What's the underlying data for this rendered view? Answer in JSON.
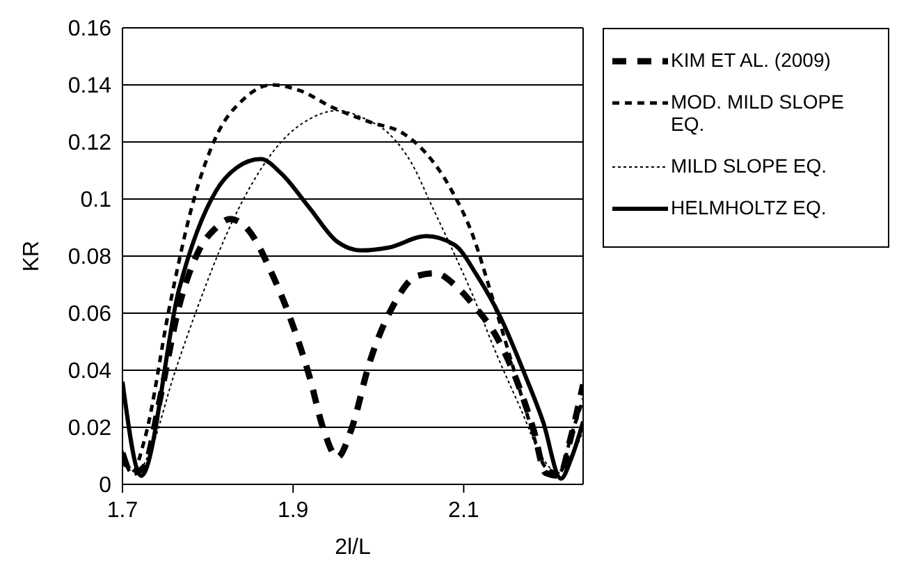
{
  "chart_data": {
    "type": "line",
    "xlabel": "2l/L",
    "ylabel": "KR",
    "xlim": [
      1.7,
      2.24
    ],
    "xticks": [
      1.7,
      1.9,
      2.1
    ],
    "ylim": [
      0,
      0.16
    ],
    "yticks": [
      0,
      0.02,
      0.04,
      0.06,
      0.08,
      0.1,
      0.12,
      0.14,
      0.16
    ],
    "grid": "y",
    "legend": "top right",
    "marker": "none",
    "series": [
      {
        "name": "KIM ET AL. (2009)",
        "color": "#000000",
        "line_style": "dashed",
        "x": [
          1.7,
          1.711,
          1.725,
          1.744,
          1.766,
          1.788,
          1.81,
          1.826,
          1.848,
          1.875,
          1.897,
          1.919,
          1.936,
          1.952,
          1.968,
          1.99,
          2.018,
          2.045,
          2.067,
          2.089,
          2.111,
          2.138,
          2.16,
          2.182,
          2.196,
          2.212,
          2.226,
          2.24
        ],
        "values": [
          0.011,
          0.004,
          0.006,
          0.03,
          0.062,
          0.081,
          0.09,
          0.093,
          0.089,
          0.074,
          0.058,
          0.038,
          0.019,
          0.0095,
          0.019,
          0.043,
          0.063,
          0.073,
          0.074,
          0.07,
          0.063,
          0.052,
          0.038,
          0.019,
          0.004,
          0.003,
          0.017,
          0.035
        ]
      },
      {
        "name": "MOD. MILD SLOPE EQ.",
        "color": "#000000",
        "line_style": "dashed",
        "x": [
          1.7,
          1.711,
          1.727,
          1.755,
          1.782,
          1.81,
          1.842,
          1.875,
          1.908,
          1.947,
          1.99,
          2.029,
          2.056,
          2.084,
          2.111,
          2.133,
          2.155,
          2.177,
          2.196,
          2.212,
          2.226,
          2.24
        ],
        "values": [
          0.011,
          0.004,
          0.017,
          0.062,
          0.098,
          0.122,
          0.135,
          0.14,
          0.138,
          0.132,
          0.127,
          0.123,
          0.116,
          0.104,
          0.087,
          0.066,
          0.044,
          0.022,
          0.006,
          0.004,
          0.017,
          0.03
        ]
      },
      {
        "name": "MILD SLOPE EQ.",
        "color": "#000000",
        "line_style": "dotted",
        "x": [
          1.7,
          1.716,
          1.733,
          1.76,
          1.788,
          1.821,
          1.853,
          1.886,
          1.919,
          1.952,
          1.985,
          2.012,
          2.04,
          2.062,
          2.084,
          2.111,
          2.138,
          2.166,
          2.193,
          2.21,
          2.226,
          2.24
        ],
        "values": [
          0.012,
          0.004,
          0.012,
          0.038,
          0.062,
          0.087,
          0.106,
          0.12,
          0.128,
          0.131,
          0.128,
          0.123,
          0.112,
          0.098,
          0.084,
          0.066,
          0.046,
          0.027,
          0.009,
          0.004,
          0.009,
          0.019
        ]
      },
      {
        "name": "HELMHOLTZ EQ.",
        "color": "#000000",
        "line_style": "solid",
        "x": [
          1.7,
          1.722,
          1.766,
          1.81,
          1.834,
          1.862,
          1.886,
          1.919,
          1.952,
          1.98,
          2.012,
          2.056,
          2.089,
          2.116,
          2.144,
          2.171,
          2.193,
          2.214,
          2.226,
          2.24
        ],
        "values": [
          0.036,
          0.003,
          0.068,
          0.103,
          0.111,
          0.114,
          0.109,
          0.097,
          0.085,
          0.082,
          0.083,
          0.087,
          0.084,
          0.073,
          0.058,
          0.039,
          0.022,
          0.002,
          0.009,
          0.022
        ]
      }
    ]
  }
}
